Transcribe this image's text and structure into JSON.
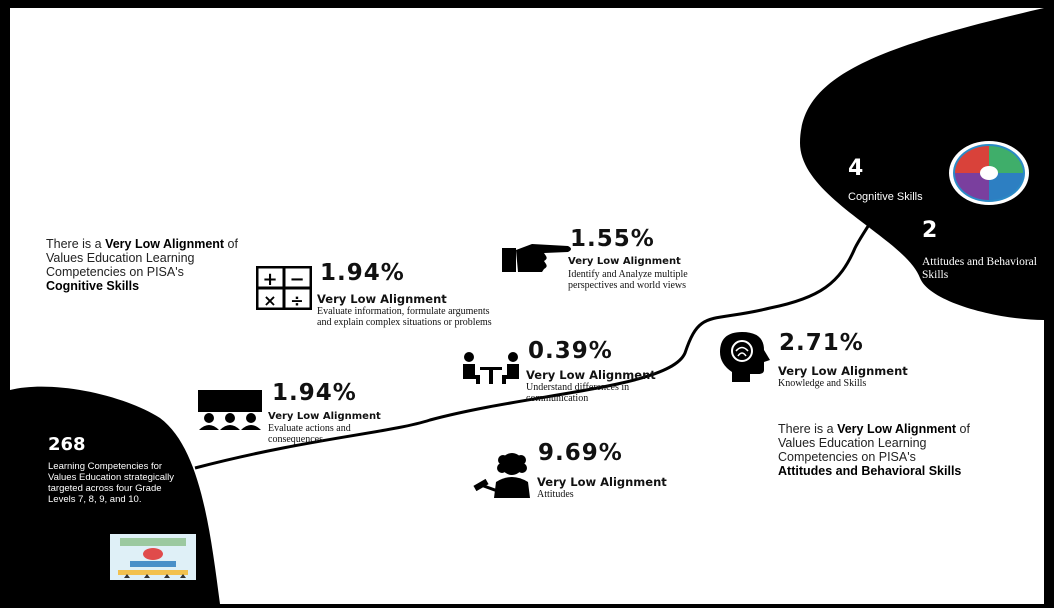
{
  "left_summary": {
    "prefix": "There is a ",
    "emphasis": "Very Low Alignment",
    "middle": " of Values Education Learning Competencies on PISA's",
    "target": "Cognitive Skills"
  },
  "right_summary": {
    "prefix": "There is a ",
    "emphasis": "Very Low Alignment",
    "middle": " of Values Education Learning Competencies on PISA's",
    "target": "Attitudes and Behavioral Skills"
  },
  "items": [
    {
      "icon": "calculator-icon",
      "percent": "1.94%",
      "level": "Very Low Alignment",
      "desc": "Evaluate information, formulate arguments and explain complex situations or problems"
    },
    {
      "icon": "pointing-hand-icon",
      "percent": "1.55%",
      "level": "Very Low Alignment",
      "desc": "Identify and Analyze multiple perspectives and world views"
    },
    {
      "icon": "meeting-people-icon",
      "percent": "0.39%",
      "level": "Very Low Alignment",
      "desc": "Understand differences in communication"
    },
    {
      "icon": "audience-board-icon",
      "percent": "1.94%",
      "level": "Very Low Alignment",
      "desc": "Evaluate actions and consequences"
    },
    {
      "icon": "brain-head-icon",
      "percent": "2.71%",
      "level": "Very Low Alignment",
      "desc": "Knowledge and Skills"
    },
    {
      "icon": "judge-gavel-icon",
      "percent": "9.69%",
      "level": "Very Low Alignment",
      "desc": "Attitudes"
    }
  ],
  "top_right": {
    "cognitive_count": "4",
    "cognitive_label": "Cognitive Skills",
    "attitudes_count": "2",
    "attitudes_label": "Attitudes and Behavioral Skills"
  },
  "bottom_left": {
    "count": "268",
    "desc": "Learning Competencies for Values Education strategically targeted across four Grade Levels 7, 8, 9, and 10."
  }
}
